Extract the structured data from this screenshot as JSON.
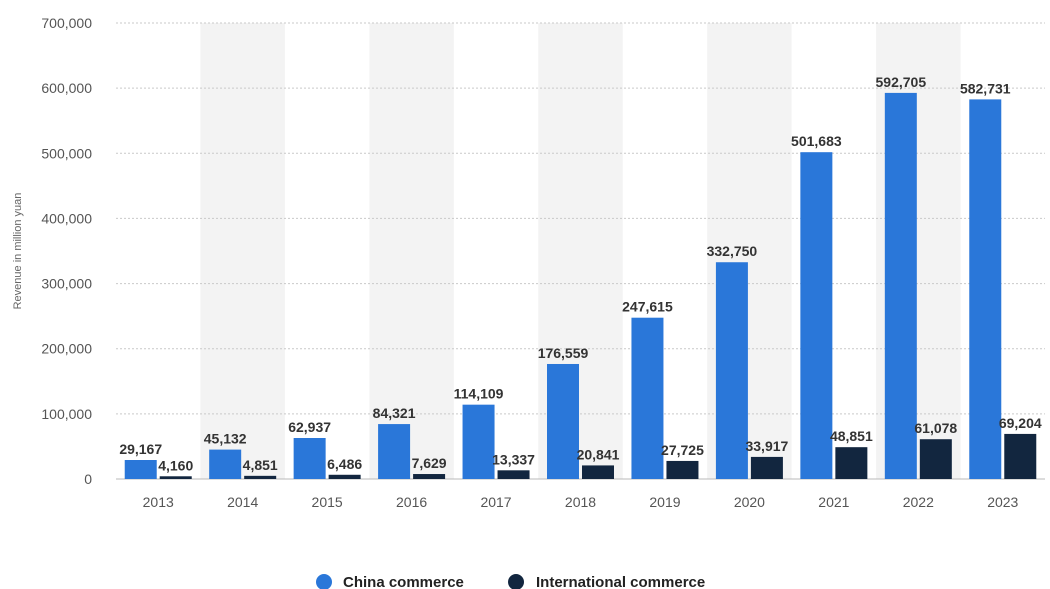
{
  "chart_data": {
    "type": "bar",
    "ylabel": "Revenue in million yuan",
    "xlabel": "",
    "ylim": [
      0,
      700000
    ],
    "yticks": [
      0,
      100000,
      200000,
      300000,
      400000,
      500000,
      600000,
      700000
    ],
    "ytick_labels": [
      "0",
      "100,000",
      "200,000",
      "300,000",
      "400,000",
      "500,000",
      "600,000",
      "700,000"
    ],
    "categories": [
      "2013",
      "2014",
      "2015",
      "2016",
      "2017",
      "2018",
      "2019",
      "2020",
      "2021",
      "2022",
      "2023"
    ],
    "grid": true,
    "legend_position": "bottom-center",
    "series": [
      {
        "name": "China commerce",
        "color": "#2a77d9",
        "values": [
          29167,
          45132,
          62937,
          84321,
          114109,
          176559,
          247615,
          332750,
          501683,
          592705,
          582731
        ],
        "labels": [
          "29,167",
          "45,132",
          "62,937",
          "84,321",
          "114,109",
          "176,559",
          "247,615",
          "332,750",
          "501,683",
          "592,705",
          "582,731"
        ]
      },
      {
        "name": "International commerce",
        "color": "#12263f",
        "values": [
          4160,
          4851,
          6486,
          7629,
          13337,
          20841,
          27725,
          33917,
          48851,
          61078,
          69204
        ],
        "labels": [
          "4,160",
          "4,851",
          "6,486",
          "7,629",
          "13,337",
          "20,841",
          "27,725",
          "33,917",
          "48,851",
          "61,078",
          "69,204"
        ]
      }
    ]
  }
}
